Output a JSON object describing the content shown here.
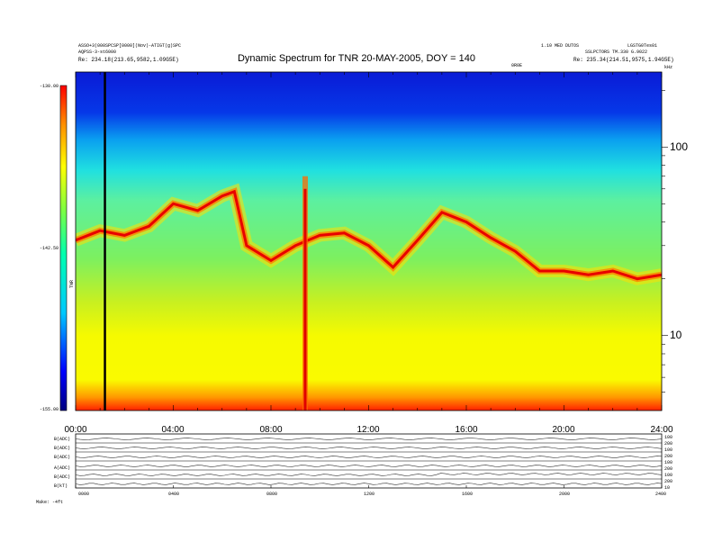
{
  "header": {
    "left_line1": "ASSO+3(000SPCSP[0000](Nov)-ATIGT(g)SPC",
    "left_line2": "AQPSS-3-st6000",
    "left_line3": "Re:  234.18(213.65,9582,1.09G5E)",
    "right_line1": "1.10 MED DUTOS",
    "right_line2": "LGSTG0Tes01",
    "right_line3": "SSLPCTORS TM.330 G.9022",
    "right_line4": "Re:  235.34(214.51,9575,1.94G5E)",
    "right_marker": "0R0E"
  },
  "colorbar": {
    "max": "-130.00",
    "mid": "-142.50",
    "min": "-155.00",
    "unit": "TNR"
  },
  "axis_right_unit": "kHz",
  "panel_bottom_labels": [
    "B(ADC)",
    "B(ADC)",
    "B(ADC)",
    "A(ADC)",
    "B(ADC)",
    "B(kT)"
  ],
  "panel_right_ticks": [
    "100",
    "200",
    "100",
    "200",
    "100",
    "200",
    "100",
    "200",
    "10"
  ],
  "footer": "Make:  -4ft",
  "chart_data": {
    "type": "heatmap",
    "title": "Dynamic Spectrum for TNR 20-MAY-2005, DOY = 140",
    "xlabel": "",
    "ylabel": "",
    "x_ticks": [
      "00:00",
      "04:00",
      "08:00",
      "12:00",
      "16:00",
      "20:00",
      "24:00"
    ],
    "x_range_hours": [
      0,
      24
    ],
    "y_ticks": [
      "100",
      "10"
    ],
    "y_scale": "log",
    "y_range_khz": [
      4,
      250
    ],
    "color_scale": {
      "min": -155.0,
      "max": -130.0,
      "colormap": "rainbow"
    },
    "ridge_frequency_khz": {
      "t_hours": [
        0,
        1,
        2,
        3,
        4,
        5,
        6,
        6.5,
        7,
        8,
        9,
        10,
        11,
        12,
        13,
        14,
        15,
        16,
        17,
        18,
        19,
        20,
        21,
        22,
        23,
        24
      ],
      "khz": [
        32,
        36,
        34,
        38,
        50,
        46,
        55,
        58,
        30,
        25,
        30,
        34,
        35,
        30,
        23,
        32,
        45,
        40,
        33,
        28,
        22,
        22,
        21,
        22,
        20,
        21
      ]
    },
    "vertical_burst_hour": 9.4,
    "black_line_hour": 1.2,
    "stacked_panels": 6,
    "bottom_x_ticks": [
      "0000",
      "0400",
      "0800",
      "1200",
      "1600",
      "2000",
      "2400"
    ]
  }
}
